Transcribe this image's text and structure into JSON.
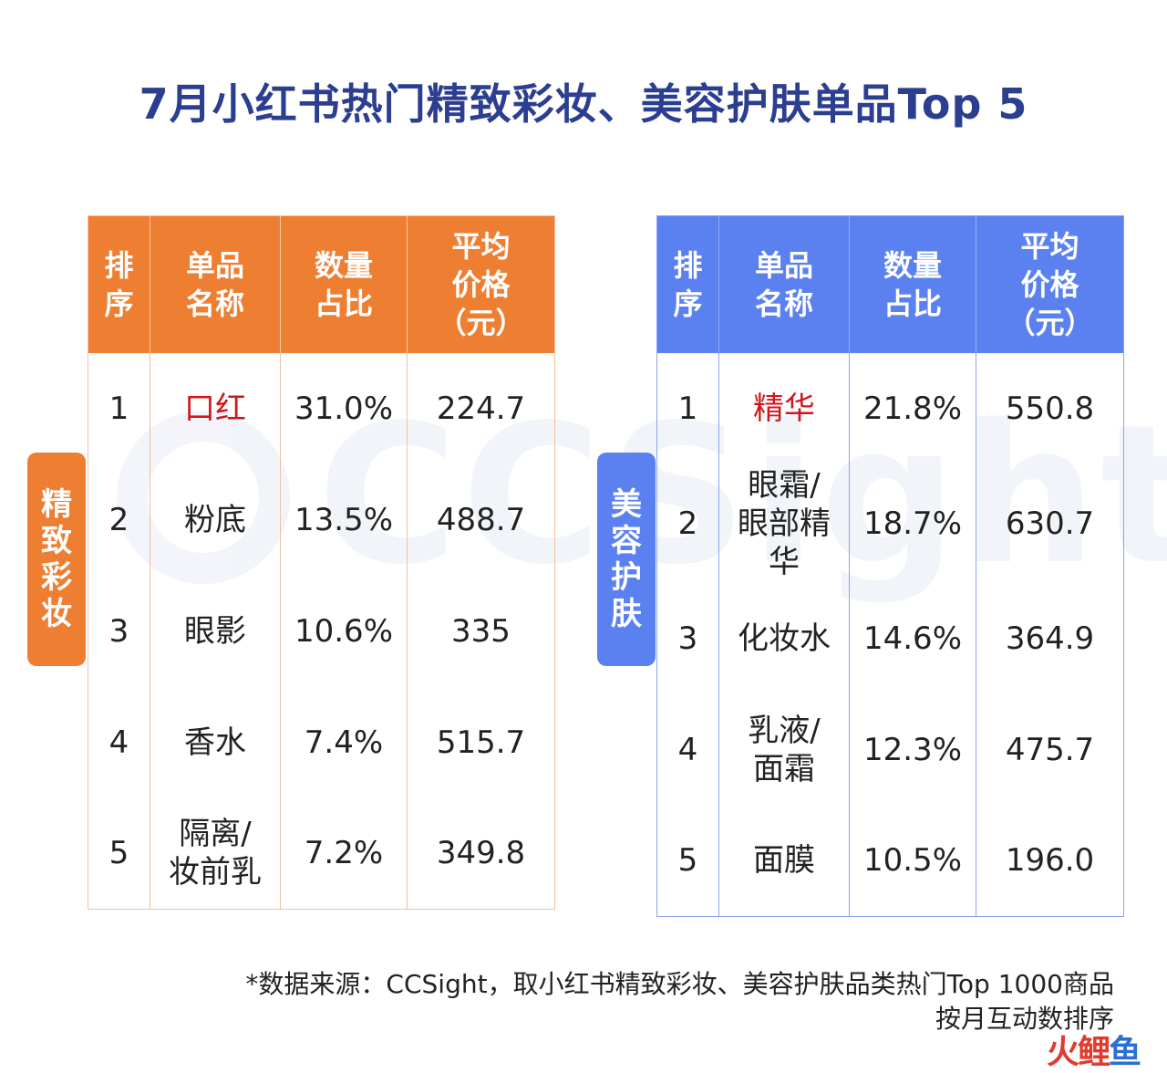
{
  "title": "7月小红书热门精致彩妆、美容护肤单品Top  5",
  "watermark": "CCSight",
  "brand": [
    "火",
    "鲤",
    "鱼"
  ],
  "colors": {
    "title": "#2c3e8f",
    "makeup_header": "#ee7e32",
    "skincare_header": "#5b81f0",
    "highlight": "#d0161b"
  },
  "chart_data": [
    {
      "type": "table",
      "category_label": [
        "精",
        "致",
        "彩",
        "妆"
      ],
      "columns": [
        "排序",
        "单品名称",
        "数量占比",
        "平均价格（元）"
      ],
      "header_lines": [
        [
          "排",
          "序"
        ],
        [
          "单品",
          "名称"
        ],
        [
          "数量",
          "占比"
        ],
        [
          "平均",
          "价格",
          "（元）"
        ]
      ],
      "rows": [
        {
          "rank": "1",
          "name_lines": [
            "口红"
          ],
          "share": "31.0%",
          "price": "224.7",
          "highlight": true
        },
        {
          "rank": "2",
          "name_lines": [
            "粉底"
          ],
          "share": "13.5%",
          "price": "488.7"
        },
        {
          "rank": "3",
          "name_lines": [
            "眼影"
          ],
          "share": "10.6%",
          "price": "335"
        },
        {
          "rank": "4",
          "name_lines": [
            "香水"
          ],
          "share": "7.4%",
          "price": "515.7"
        },
        {
          "rank": "5",
          "name_lines": [
            "隔离/",
            "妆前乳"
          ],
          "share": "7.2%",
          "price": "349.8"
        }
      ]
    },
    {
      "type": "table",
      "category_label": [
        "美",
        "容",
        "护",
        "肤"
      ],
      "columns": [
        "排序",
        "单品名称",
        "数量占比",
        "平均价格（元）"
      ],
      "header_lines": [
        [
          "排",
          "序"
        ],
        [
          "单品",
          "名称"
        ],
        [
          "数量",
          "占比"
        ],
        [
          "平均",
          "价格",
          "（元）"
        ]
      ],
      "rows": [
        {
          "rank": "1",
          "name_lines": [
            "精华"
          ],
          "share": "21.8%",
          "price": "550.8",
          "highlight": true
        },
        {
          "rank": "2",
          "name_lines": [
            "眼霜/",
            "眼部精",
            "华"
          ],
          "share": "18.7%",
          "price": "630.7"
        },
        {
          "rank": "3",
          "name_lines": [
            "化妆水"
          ],
          "share": "14.6%",
          "price": "364.9"
        },
        {
          "rank": "4",
          "name_lines": [
            "乳液/",
            "面霜"
          ],
          "share": "12.3%",
          "price": "475.7"
        },
        {
          "rank": "5",
          "name_lines": [
            "面膜"
          ],
          "share": "10.5%",
          "price": "196.0"
        }
      ]
    }
  ],
  "footnote": [
    "*数据来源：CCSight，取小红书精致彩妆、美容护肤品类热门Top 1000商品",
    "按月互动数排序"
  ]
}
